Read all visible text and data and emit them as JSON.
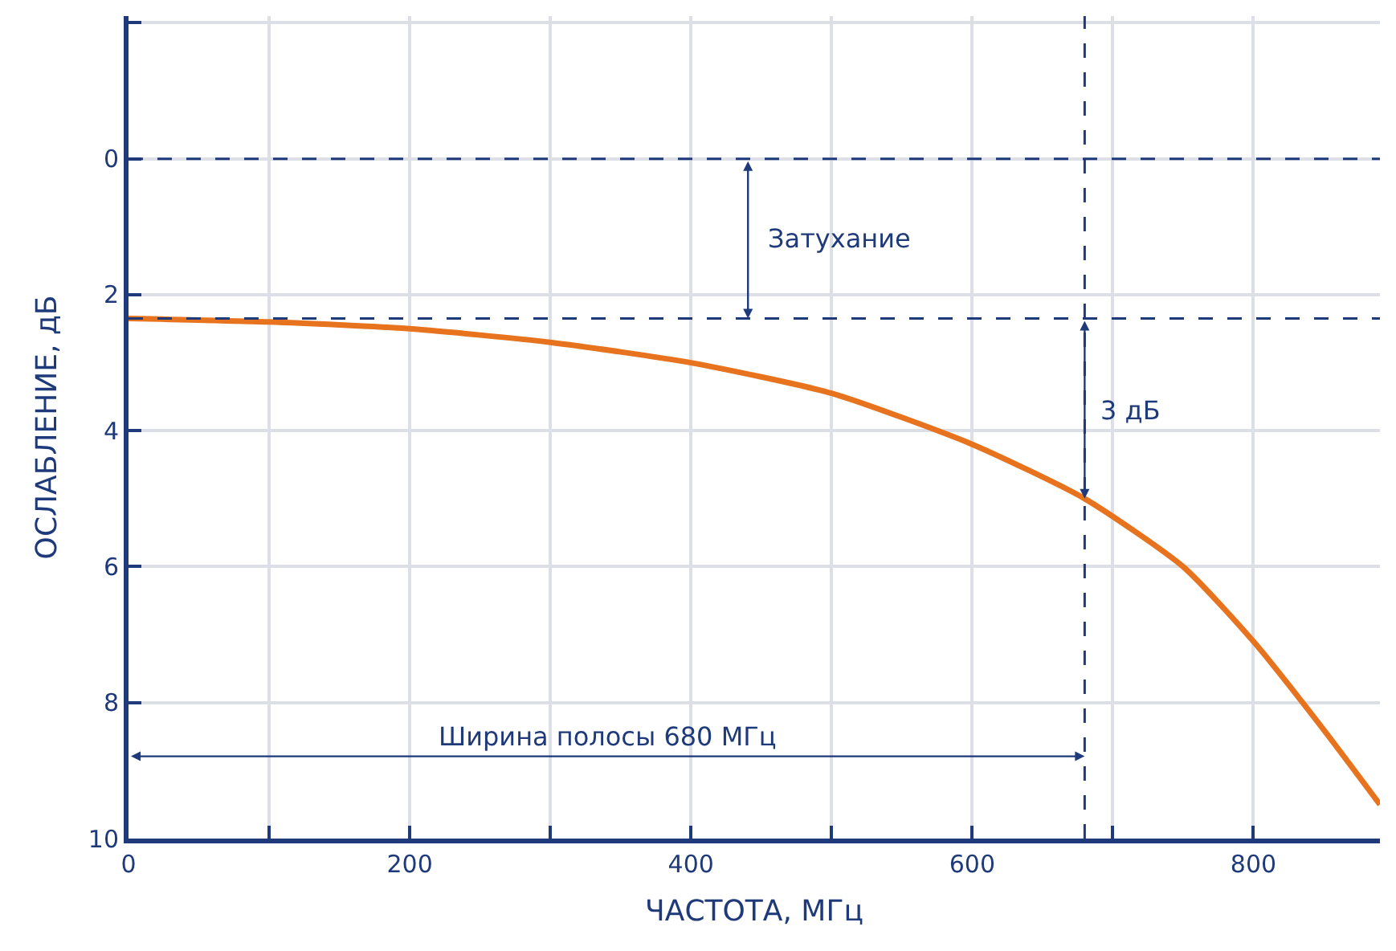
{
  "chart_data": {
    "type": "line",
    "xlabel": "ЧАСТОТА, МГц",
    "ylabel": "ОСЛАБЛЕНИЕ, дБ",
    "x": [
      0,
      100,
      200,
      300,
      400,
      500,
      600,
      680,
      750,
      800,
      850,
      890
    ],
    "series": [
      {
        "color": "#e8731e",
        "values": [
          2.35,
          2.4,
          2.5,
          2.7,
          3.0,
          3.45,
          4.2,
          5.0,
          6.0,
          7.1,
          8.4,
          9.5
        ]
      }
    ],
    "xlim": [
      0,
      890
    ],
    "ylim": [
      10,
      -2.1
    ],
    "xticks": [
      0,
      {
        "value": 100,
        "label": null
      },
      200,
      {
        "value": 300,
        "label": null
      },
      400,
      {
        "value": 500,
        "label": null
      },
      600,
      {
        "value": 700,
        "label": null
      },
      800
    ],
    "yticks": [
      {
        "value": -2,
        "label": null
      },
      0,
      2,
      4,
      6,
      8,
      10
    ],
    "ref_lines": [
      {
        "axis": "y",
        "value": 0,
        "color": "#1f3a7a",
        "line_style": "dashed"
      },
      {
        "axis": "y",
        "value": 2.35,
        "color": "#1f3a7a",
        "line_style": "dashed"
      },
      {
        "axis": "x",
        "value": 680,
        "color": "#1f3a7a",
        "line_style": "dashed"
      }
    ],
    "annotations": [
      "Затухание",
      {
        "text": "3 дБ",
        "x": 680,
        "y": 3.7
      },
      "Ширина полосы 680 МГц"
    ],
    "grid": true,
    "marker": "none",
    "line_style": "solid"
  }
}
